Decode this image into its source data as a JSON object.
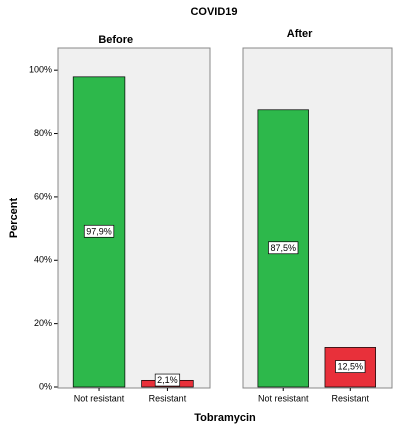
{
  "chart_data": {
    "type": "bar",
    "title": "COVID19",
    "xlabel": "Tobramycin",
    "ylabel": "Percent",
    "categories": [
      "Not resistant",
      "Resistant"
    ],
    "colors": [
      "#2db84b",
      "#e8303a"
    ],
    "ylim": [
      0,
      107
    ],
    "yticks": [
      {
        "value": 0,
        "label": "0%"
      },
      {
        "value": 20,
        "label": "20%"
      },
      {
        "value": 40,
        "label": "40%"
      },
      {
        "value": 60,
        "label": "60%"
      },
      {
        "value": 80,
        "label": "80%"
      },
      {
        "value": 100,
        "label": "100%"
      }
    ],
    "panels": [
      {
        "title": "Before",
        "values": [
          97.9,
          2.1
        ],
        "value_labels": [
          "97,9%",
          "2,1%"
        ]
      },
      {
        "title": "After",
        "values": [
          87.5,
          12.5
        ],
        "value_labels": [
          "87,5%",
          "12,5%"
        ]
      }
    ]
  }
}
